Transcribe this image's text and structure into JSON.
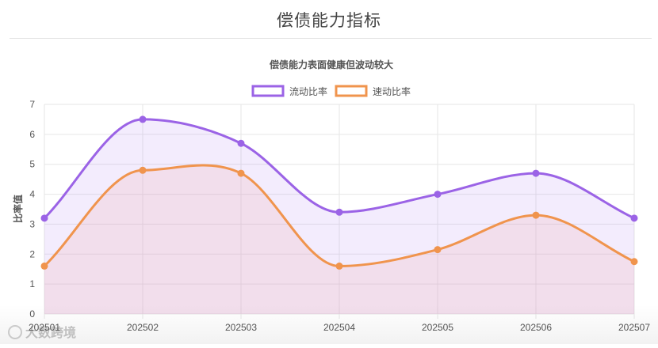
{
  "header": {
    "title": "偿债能力指标"
  },
  "watermark": {
    "text": "大数跨境"
  },
  "chart_data": {
    "type": "area",
    "title": "偿债能力表面健康但波动较大",
    "xlabel": "",
    "ylabel": "比率值",
    "categories": [
      "202501",
      "202502",
      "202503",
      "202504",
      "202505",
      "202506",
      "202507"
    ],
    "ylim": [
      0,
      7
    ],
    "yticks": [
      "0",
      "1",
      "2",
      "3",
      "4",
      "5",
      "6",
      "7"
    ],
    "grid": true,
    "legend_position": "top-center",
    "series": [
      {
        "name": "流动比率",
        "values": [
          3.2,
          6.5,
          5.7,
          3.4,
          4.0,
          4.7,
          3.2
        ],
        "color": "#9b63e6",
        "fill": "rgba(190,150,245,0.18)"
      },
      {
        "name": "速动比率",
        "values": [
          1.6,
          4.8,
          4.7,
          1.6,
          2.15,
          3.3,
          1.75
        ],
        "color": "#f0944d",
        "fill": "rgba(240,160,160,0.18)"
      }
    ]
  }
}
